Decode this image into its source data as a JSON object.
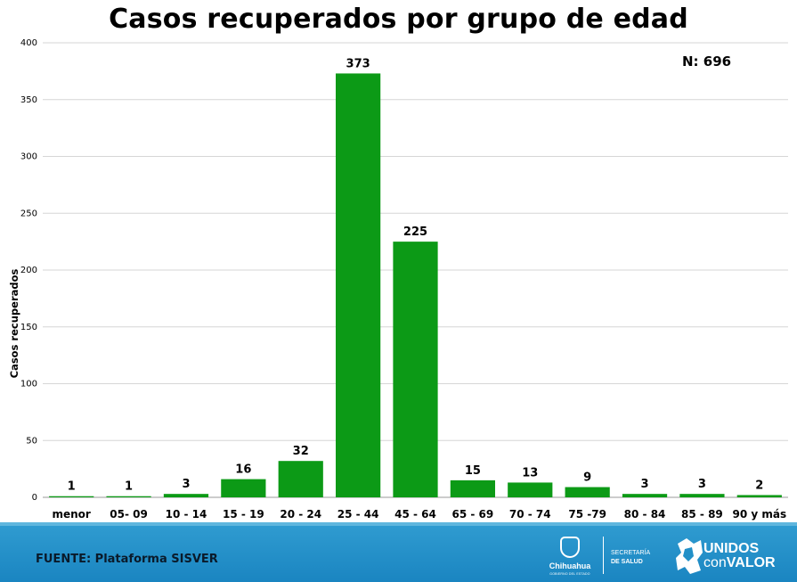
{
  "chart_data": {
    "type": "bar",
    "title": "Casos recuperados por grupo de edad",
    "ylabel": "Casos recuperados",
    "xlabel": "",
    "categories": [
      "menor",
      "05- 09",
      "10 - 14",
      "15 - 19",
      "20 - 24",
      "25 - 44",
      "45 - 64",
      "65 - 69",
      "70 - 74",
      "75 -79",
      "80 - 84",
      "85 - 89",
      "90 y más"
    ],
    "values": [
      1,
      1,
      3,
      16,
      32,
      373,
      225,
      15,
      13,
      9,
      3,
      3,
      2
    ],
    "ylim": [
      0,
      400
    ],
    "yticks": [
      0,
      50,
      100,
      150,
      200,
      250,
      300,
      350,
      400
    ],
    "grid": true,
    "bar_color": "#0c9a16",
    "annotation": "N: 696"
  },
  "footer": {
    "source": "FUENTE: Plataforma SISVER",
    "logo1_text": "Chihuahua",
    "logo1_sub": "GOBIERNO DEL ESTADO",
    "logo2_line1": "SECRETARÍA",
    "logo2_line2": "DE SALUD",
    "logo3_line1": "UNIDOS",
    "logo3_line2a": "con",
    "logo3_line2b": "VALOR"
  }
}
